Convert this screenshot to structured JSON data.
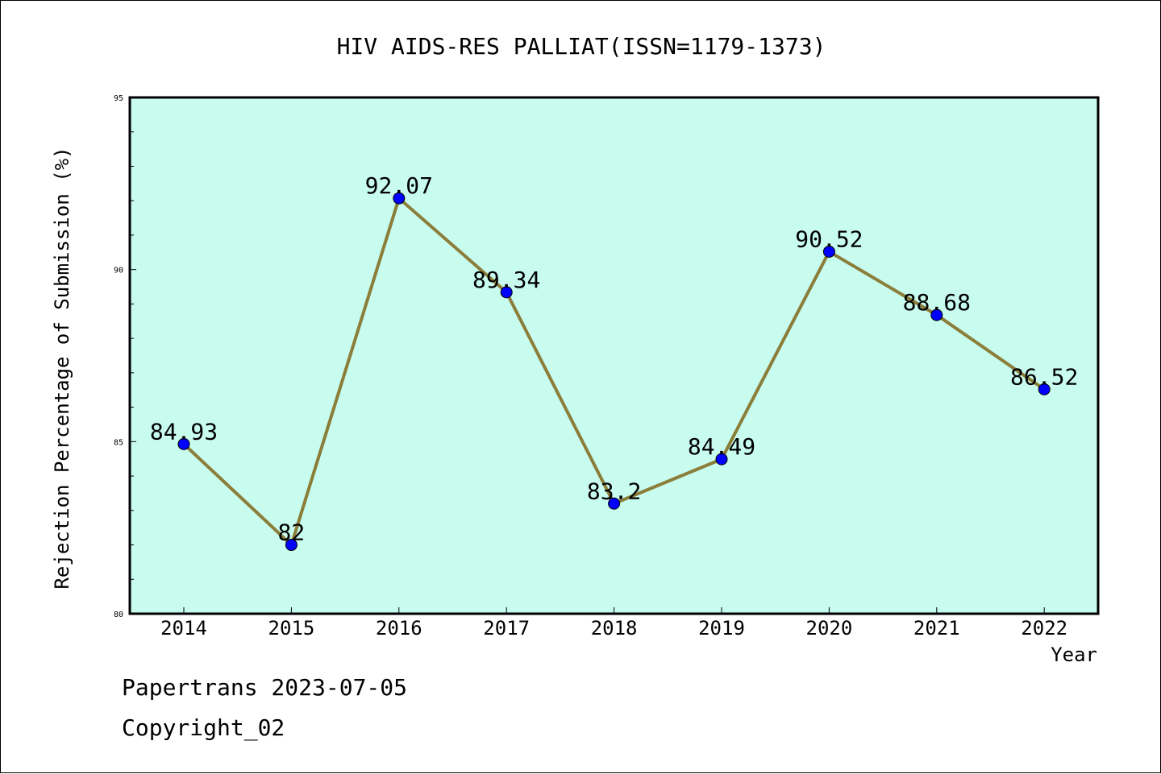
{
  "chart_data": {
    "type": "line",
    "title": "HIV AIDS-RES PALLIAT(ISSN=1179-1373)",
    "xlabel": "Year",
    "ylabel": "Rejection Percentage of Submission (%)",
    "categories": [
      "2014",
      "2015",
      "2016",
      "2017",
      "2018",
      "2019",
      "2020",
      "2021",
      "2022"
    ],
    "series": [
      {
        "values": [
          84.93,
          82,
          92.07,
          89.34,
          83.2,
          84.49,
          90.52,
          88.68,
          86.52
        ],
        "labels": [
          "84.93",
          "82",
          "92.07",
          "89.34",
          "83.2",
          "84.49",
          "90.52",
          "88.68",
          "86.52"
        ]
      }
    ],
    "ylim": [
      80,
      95
    ],
    "yticks": [
      "80",
      "85",
      "90",
      "95"
    ],
    "grid": false,
    "colors": {
      "plot_background": "#c8fcee",
      "line": "#8b7d3a",
      "marker": "#0000ff"
    }
  },
  "footer": {
    "line1": "Papertrans 2023-07-05",
    "line2": "Copyright_02"
  }
}
